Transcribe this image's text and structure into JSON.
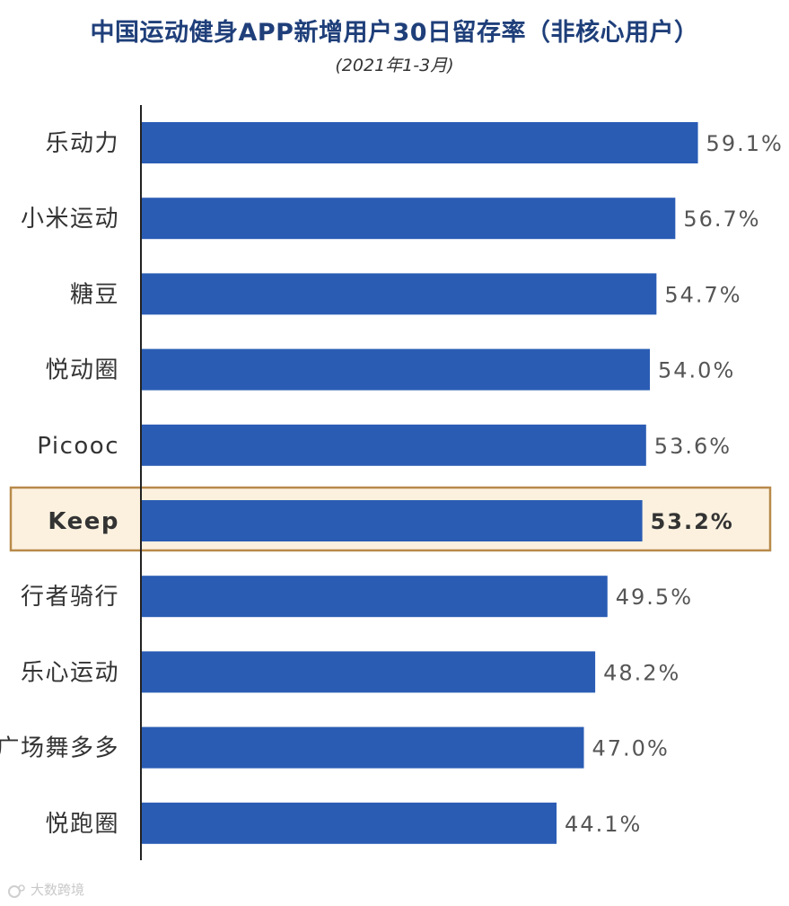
{
  "colors": {
    "title": "#1f3f7a",
    "bar": "#2a5cb4",
    "label": "#333333",
    "value": "#555555",
    "axis": "#222222",
    "highlight_fill": "#fcf1df",
    "highlight_border": "#b88a4a"
  },
  "chart_data": {
    "type": "bar",
    "orientation": "horizontal",
    "title": "中国运动健身APP新增用户30日留存率（非核心用户）",
    "subtitle": "(2021年1-3月)",
    "unit": "%",
    "categories": [
      "乐动力",
      "小米运动",
      "糖豆",
      "悦动圈",
      "Picooc",
      "Keep",
      "行者骑行",
      "乐心运动",
      "广场舞多多",
      "悦跑圈"
    ],
    "values": [
      59.1,
      56.7,
      54.7,
      54.0,
      53.6,
      53.2,
      49.5,
      48.2,
      47.0,
      44.1
    ],
    "value_labels": [
      "59.1%",
      "56.7%",
      "54.7%",
      "54.0%",
      "53.6%",
      "53.2%",
      "49.5%",
      "48.2%",
      "47.0%",
      "44.1%"
    ],
    "highlight": "Keep",
    "xlim": [
      0,
      62
    ],
    "grid": false,
    "legend": "none"
  },
  "watermark": {
    "text": "大数跨境"
  }
}
